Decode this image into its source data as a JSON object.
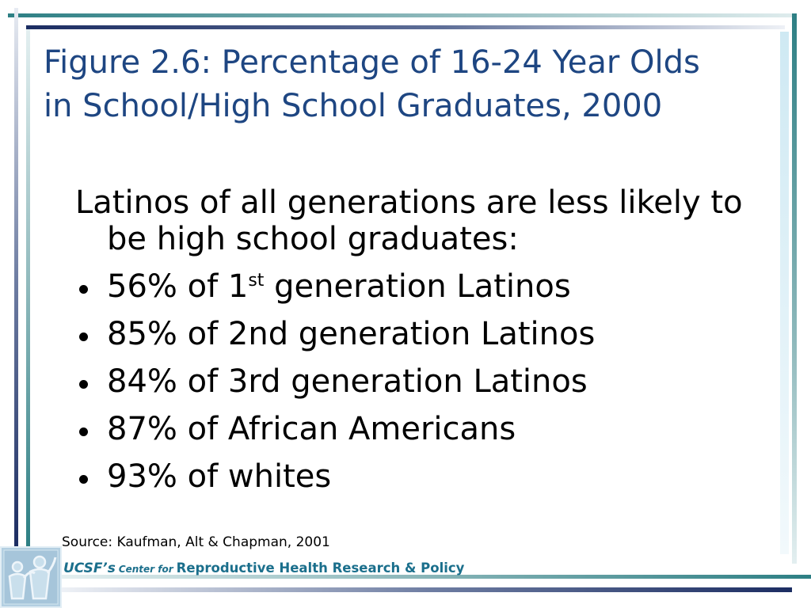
{
  "slide": {
    "title": {
      "line1": "Figure 2.6: Percentage of 16-24 Year Olds",
      "line2": "in School/High School Graduates, 2000"
    },
    "intro": {
      "line1": "Latinos of all generations are less likely to",
      "line2": "be high school graduates:"
    },
    "bullets": [
      {
        "prefix": "56% of 1",
        "sup": "st",
        "suffix": " generation Latinos"
      },
      {
        "text": "85% of 2nd generation Latinos"
      },
      {
        "text": "84% of 3rd generation Latinos"
      },
      {
        "text": "87% of African Americans"
      },
      {
        "text": "93% of whites"
      }
    ],
    "source": "Source: Kaufman, Alt & Chapman, 2001",
    "footer": {
      "org": "UCSF’s",
      "center_for": "Center for",
      "program": "Reproductive Health Research & Policy"
    },
    "logo_icon": "ucsf-figure-logo-icon",
    "bullet_icon": "bullet-dot-icon"
  },
  "colors": {
    "title": "#1e4682",
    "body_text": "#000000",
    "footer_text": "#1b6f8c",
    "accent_teal": "#2d7f84",
    "accent_navy": "#1c2d62",
    "accent_light_blue": "#cfe9f3",
    "logo_fill": "#b3cfe1"
  }
}
